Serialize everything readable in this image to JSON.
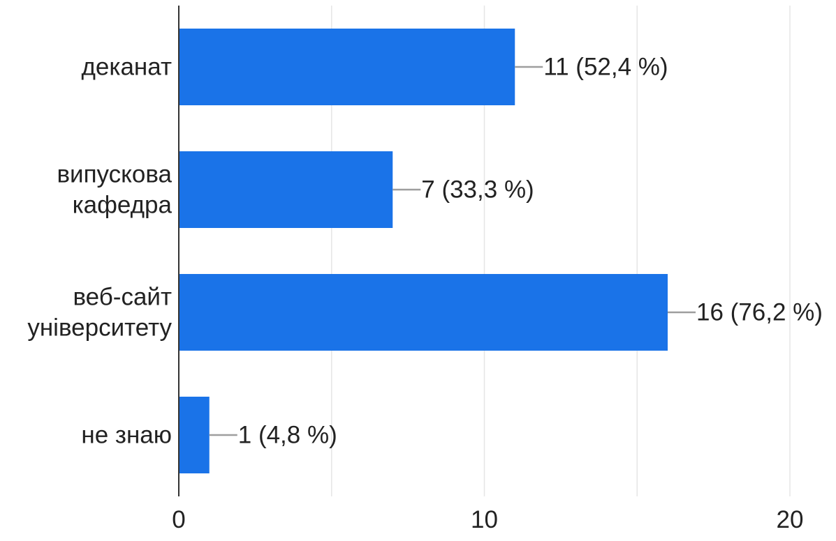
{
  "chart_data": {
    "type": "bar",
    "orientation": "horizontal",
    "title": "",
    "xlabel": "",
    "ylabel": "",
    "categories": [
      [
        "деканат"
      ],
      [
        "випускова",
        "кафедра"
      ],
      [
        "веб-сайт",
        "університету"
      ],
      [
        "не знаю"
      ]
    ],
    "values": [
      11,
      7,
      16,
      1
    ],
    "value_labels": [
      "11 (52,4 %)",
      "7 (33,3 %)",
      "16 (76,2 %)",
      "1 (4,8 %)"
    ],
    "xlim": [
      0,
      20
    ],
    "x_ticks": [
      0,
      10,
      20
    ],
    "x_tick_labels": [
      "0",
      "10",
      "20"
    ],
    "minor_gridlines": [
      5,
      15
    ],
    "grid": true,
    "legend": "none",
    "colors": {
      "bar": "#1a73e8",
      "axis": "#333333",
      "grid": "#e6e6e6",
      "leader": "#9e9e9e",
      "text": "#222222"
    }
  }
}
